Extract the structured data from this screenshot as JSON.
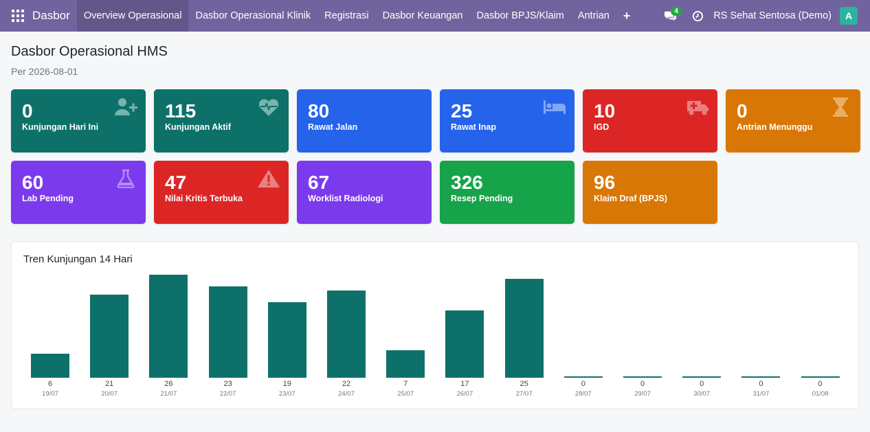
{
  "nav": {
    "brand": "Dasbor",
    "menu": [
      {
        "label": "Overview Operasional",
        "active": true
      },
      {
        "label": "Dasbor Operasional Klinik"
      },
      {
        "label": "Registrasi"
      },
      {
        "label": "Dasbor Keuangan"
      },
      {
        "label": "Dasbor BPJS/Klaim"
      },
      {
        "label": "Antrian"
      }
    ],
    "plus": "+",
    "chat_count": "4",
    "company": "RS Sehat Sentosa (Demo)",
    "avatar_letter": "A"
  },
  "page": {
    "title": "Dasbor Operasional HMS",
    "subtitle": "Per 2026-08-01"
  },
  "cards": [
    {
      "value": "0",
      "label": "Kunjungan Hari Ini",
      "color": "teal",
      "icon": "user-plus-icon"
    },
    {
      "value": "115",
      "label": "Kunjungan Aktif",
      "color": "teal",
      "icon": "heartbeat-icon"
    },
    {
      "value": "80",
      "label": "Rawat Jalan",
      "color": "blue",
      "icon": ""
    },
    {
      "value": "25",
      "label": "Rawat Inap",
      "color": "blue",
      "icon": "bed-icon"
    },
    {
      "value": "10",
      "label": "IGD",
      "color": "red",
      "icon": "ambulance-icon"
    },
    {
      "value": "0",
      "label": "Antrian Menunggu",
      "color": "orange",
      "icon": "hourglass-icon"
    },
    {
      "value": "60",
      "label": "Lab Pending",
      "color": "purple",
      "icon": "flask-icon"
    },
    {
      "value": "47",
      "label": "Nilai Kritis Terbuka",
      "color": "red",
      "icon": "warning-icon"
    },
    {
      "value": "67",
      "label": "Worklist Radiologi",
      "color": "purple",
      "icon": ""
    },
    {
      "value": "326",
      "label": "Resep Pending",
      "color": "green",
      "icon": ""
    },
    {
      "value": "96",
      "label": "Klaim Draf (BPJS)",
      "color": "orange",
      "icon": ""
    }
  ],
  "colors": {
    "navbar": "#71639e",
    "teal": "#0e7169",
    "blue": "#2563eb",
    "red": "#dc2626",
    "orange": "#d97706",
    "purple": "#7c3aed",
    "green": "#16a34a"
  },
  "chart_data": {
    "type": "bar",
    "title": "Tren Kunjungan 14 Hari",
    "categories": [
      "19/07",
      "20/07",
      "21/07",
      "22/07",
      "23/07",
      "24/07",
      "25/07",
      "26/07",
      "27/07",
      "28/07",
      "29/07",
      "30/07",
      "31/07",
      "01/08"
    ],
    "values": [
      6,
      21,
      26,
      23,
      19,
      22,
      7,
      17,
      25,
      0,
      0,
      0,
      0,
      0
    ],
    "xlabel": "",
    "ylabel": "",
    "grid": false,
    "color": "#0e7169"
  }
}
